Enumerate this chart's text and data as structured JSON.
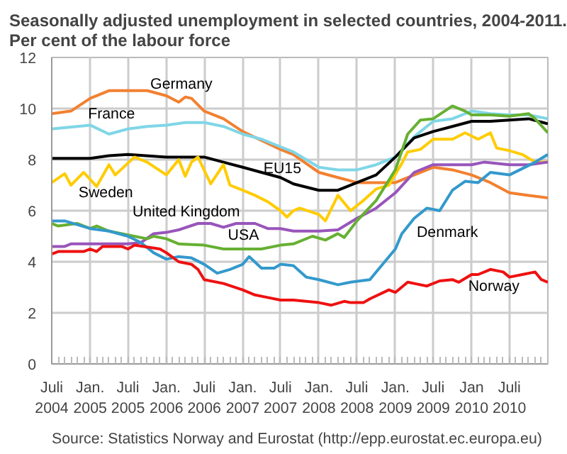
{
  "chart_data": {
    "type": "line",
    "title": "Seasonally adjusted unemployment in selected countries, 2004-2011.",
    "subtitle": "Per cent of the labour force",
    "annotations": [
      "Source: Statistics Norway and Eurostat (http://epp.eurostat.ec.europa.eu)"
    ],
    "xlim": [
      "2004-07",
      "2011-01"
    ],
    "ylim": [
      0,
      12
    ],
    "xticks": [
      {
        "value": "2004-07",
        "label": "Juli\n2004"
      },
      {
        "value": "2005-01",
        "label": "Jan.\n2005"
      },
      {
        "value": "2005-07",
        "label": "Juli\n2005"
      },
      {
        "value": "2006-01",
        "label": "Jan.\n2006"
      },
      {
        "value": "2006-07",
        "label": "Juli\n2006"
      },
      {
        "value": "2007-01",
        "label": "Jan.\n2007"
      },
      {
        "value": "2007-07",
        "label": "Juli\n2007"
      },
      {
        "value": "2008-01",
        "label": "Jan.\n2008"
      },
      {
        "value": "2008-07",
        "label": "Juli\n2008"
      },
      {
        "value": "2009-01",
        "label": "Jan.\n2009"
      },
      {
        "value": "2009-07",
        "label": "Juli\n2009"
      },
      {
        "value": "2010-01",
        "label": "Jan\n2010"
      },
      {
        "value": "2010-07",
        "label": "Juli\n2010"
      }
    ],
    "yticks": [
      0,
      2,
      4,
      6,
      8,
      10,
      12
    ],
    "grid": true,
    "legend": false,
    "marker": "none",
    "line_style": "solid",
    "series": [
      {
        "name": "Germany",
        "color": "#f28030",
        "x": [
          "2004-07",
          "2004-10",
          "2005-01",
          "2005-04",
          "2005-07",
          "2005-10",
          "2006-01",
          "2006-03",
          "2006-04",
          "2006-05",
          "2006-07",
          "2006-10",
          "2007-01",
          "2007-04",
          "2007-07",
          "2007-09",
          "2008-01",
          "2008-04",
          "2008-07",
          "2008-10",
          "2009-01",
          "2009-04",
          "2009-07",
          "2009-10",
          "2010-01",
          "2010-04",
          "2010-07",
          "2010-10",
          "2011-01"
        ],
        "values": [
          9.8,
          9.9,
          10.4,
          10.7,
          10.7,
          10.7,
          10.5,
          10.25,
          10.45,
          10.4,
          9.9,
          9.6,
          9.1,
          8.75,
          8.4,
          8.2,
          7.5,
          7.3,
          7.1,
          7.1,
          7.1,
          7.4,
          7.7,
          7.6,
          7.4,
          7.1,
          6.7,
          6.6,
          6.5
        ]
      },
      {
        "name": "France",
        "color": "#7fd6e6",
        "x": [
          "2004-07",
          "2005-01",
          "2005-04",
          "2005-07",
          "2005-10",
          "2006-01",
          "2006-04",
          "2006-07",
          "2006-10",
          "2007-01",
          "2007-04",
          "2007-07",
          "2007-09",
          "2008-01",
          "2008-04",
          "2008-07",
          "2008-10",
          "2009-01",
          "2009-04",
          "2009-07",
          "2009-10",
          "2010-01",
          "2010-04",
          "2010-07",
          "2010-10",
          "2011-01"
        ],
        "values": [
          9.2,
          9.35,
          9.0,
          9.2,
          9.3,
          9.35,
          9.45,
          9.45,
          9.3,
          9.0,
          8.8,
          8.5,
          8.3,
          7.7,
          7.6,
          7.6,
          7.8,
          8.1,
          8.9,
          9.5,
          9.6,
          9.9,
          9.8,
          9.75,
          9.75,
          9.6
        ]
      },
      {
        "name": "EU15",
        "color": "#000000",
        "x": [
          "2004-07",
          "2005-01",
          "2005-04",
          "2005-07",
          "2006-01",
          "2006-07",
          "2006-10",
          "2007-01",
          "2007-04",
          "2007-07",
          "2007-09",
          "2008-01",
          "2008-04",
          "2008-07",
          "2008-10",
          "2009-01",
          "2009-04",
          "2009-07",
          "2009-10",
          "2010-01",
          "2010-04",
          "2010-07",
          "2010-10",
          "2011-01"
        ],
        "values": [
          8.05,
          8.05,
          8.15,
          8.2,
          8.1,
          8.1,
          7.9,
          7.7,
          7.5,
          7.3,
          7.05,
          6.8,
          6.8,
          7.1,
          7.4,
          8.1,
          8.85,
          9.1,
          9.3,
          9.5,
          9.5,
          9.55,
          9.6,
          9.4
        ]
      },
      {
        "name": "Sweden",
        "color": "#ffcc00",
        "x": [
          "2004-07",
          "2004-09",
          "2004-10",
          "2004-12",
          "2005-02",
          "2005-04",
          "2005-05",
          "2005-08",
          "2005-10",
          "2006-01",
          "2006-03",
          "2006-04",
          "2006-05",
          "2006-06",
          "2006-08",
          "2006-10",
          "2006-11",
          "2007-01",
          "2007-03",
          "2007-05",
          "2007-07",
          "2007-08",
          "2007-09",
          "2007-10",
          "2008-01",
          "2008-02",
          "2008-04",
          "2008-06",
          "2008-08",
          "2008-10",
          "2008-12",
          "2009-02",
          "2009-03",
          "2009-05",
          "2009-07",
          "2009-10",
          "2009-12",
          "2010-02",
          "2010-04",
          "2010-05",
          "2010-07",
          "2010-09",
          "2010-11",
          "2011-01"
        ],
        "values": [
          7.1,
          7.45,
          7.0,
          7.5,
          6.95,
          7.8,
          7.4,
          8.1,
          7.9,
          7.4,
          8.0,
          7.35,
          7.9,
          8.1,
          7.05,
          7.8,
          7.0,
          6.8,
          6.6,
          6.35,
          6.0,
          5.75,
          6.0,
          6.1,
          5.85,
          5.6,
          6.6,
          6.0,
          6.4,
          6.85,
          7.0,
          7.85,
          8.3,
          8.4,
          8.8,
          8.8,
          9.05,
          8.8,
          9.05,
          8.45,
          8.35,
          8.2,
          7.9,
          7.9
        ]
      },
      {
        "name": "United Kingdom",
        "color": "#9955bb",
        "x": [
          "2004-07",
          "2004-09",
          "2004-10",
          "2005-07",
          "2005-09",
          "2005-11",
          "2006-01",
          "2006-03",
          "2006-06",
          "2006-08",
          "2006-10",
          "2006-12",
          "2007-03",
          "2007-05",
          "2007-07",
          "2007-09",
          "2008-01",
          "2008-04",
          "2008-07",
          "2008-10",
          "2009-01",
          "2009-04",
          "2009-07",
          "2009-10",
          "2010-01",
          "2010-03",
          "2010-07",
          "2010-10",
          "2011-01"
        ],
        "values": [
          4.6,
          4.6,
          4.7,
          4.7,
          4.75,
          5.1,
          5.15,
          5.25,
          5.5,
          5.5,
          5.35,
          5.5,
          5.5,
          5.3,
          5.3,
          5.2,
          5.2,
          5.25,
          5.7,
          6.1,
          6.7,
          7.5,
          7.8,
          7.8,
          7.8,
          7.9,
          7.8,
          7.8,
          7.9
        ]
      },
      {
        "name": "USA",
        "color": "#66b032",
        "x": [
          "2004-07",
          "2004-08",
          "2004-11",
          "2005-01",
          "2005-02",
          "2005-04",
          "2005-07",
          "2005-10",
          "2005-11",
          "2006-01",
          "2006-03",
          "2006-07",
          "2006-10",
          "2007-01",
          "2007-04",
          "2007-07",
          "2007-09",
          "2007-12",
          "2008-02",
          "2008-04",
          "2008-05",
          "2008-07",
          "2008-10",
          "2009-01",
          "2009-03",
          "2009-05",
          "2009-07",
          "2009-10",
          "2009-12",
          "2010-01",
          "2010-04",
          "2010-07",
          "2010-10",
          "2010-11",
          "2011-01"
        ],
        "values": [
          5.5,
          5.4,
          5.5,
          5.3,
          5.4,
          5.2,
          5.05,
          4.9,
          5.0,
          4.9,
          4.7,
          4.65,
          4.5,
          4.5,
          4.5,
          4.65,
          4.7,
          5.0,
          4.85,
          5.1,
          4.95,
          5.6,
          6.4,
          7.6,
          9.0,
          9.55,
          9.6,
          10.1,
          9.9,
          9.75,
          9.75,
          9.7,
          9.8,
          9.6,
          9.05
        ]
      },
      {
        "name": "Denmark",
        "color": "#3399cc",
        "x": [
          "2004-07",
          "2004-09",
          "2005-01",
          "2005-04",
          "2005-07",
          "2005-09",
          "2005-11",
          "2006-01",
          "2006-03",
          "2006-05",
          "2006-07",
          "2006-09",
          "2006-11",
          "2007-01",
          "2007-02",
          "2007-04",
          "2007-06",
          "2007-07",
          "2007-09",
          "2007-11",
          "2008-01",
          "2008-04",
          "2008-06",
          "2008-09",
          "2008-10",
          "2009-01",
          "2009-02",
          "2009-04",
          "2009-06",
          "2009-08",
          "2009-10",
          "2009-12",
          "2010-02",
          "2010-04",
          "2010-07",
          "2010-09",
          "2010-11",
          "2011-01"
        ],
        "values": [
          5.6,
          5.6,
          5.3,
          5.2,
          5.0,
          4.75,
          4.35,
          4.1,
          4.2,
          4.15,
          3.9,
          3.55,
          3.7,
          3.9,
          4.2,
          3.75,
          3.75,
          3.9,
          3.85,
          3.4,
          3.3,
          3.1,
          3.2,
          3.3,
          3.6,
          4.5,
          5.1,
          5.7,
          6.1,
          6.0,
          6.8,
          7.15,
          7.1,
          7.5,
          7.4,
          7.65,
          7.9,
          8.2
        ]
      },
      {
        "name": "Norway",
        "color": "#ee1111",
        "x": [
          "2004-07",
          "2004-08",
          "2004-12",
          "2005-01",
          "2005-02",
          "2005-03",
          "2005-06",
          "2005-07",
          "2005-08",
          "2005-12",
          "2006-01",
          "2006-03",
          "2006-05",
          "2006-06",
          "2006-07",
          "2006-10",
          "2007-01",
          "2007-03",
          "2007-05",
          "2007-07",
          "2007-09",
          "2008-01",
          "2008-03",
          "2008-05",
          "2008-06",
          "2008-08",
          "2008-09",
          "2008-12",
          "2009-01",
          "2009-03",
          "2009-04",
          "2009-06",
          "2009-08",
          "2009-10",
          "2009-11",
          "2010-01",
          "2010-02",
          "2010-04",
          "2010-06",
          "2010-07",
          "2010-09",
          "2010-11",
          "2010-12",
          "2011-01"
        ],
        "values": [
          4.3,
          4.4,
          4.4,
          4.5,
          4.4,
          4.6,
          4.6,
          4.5,
          4.65,
          4.5,
          4.35,
          4.0,
          3.9,
          3.7,
          3.3,
          3.15,
          2.9,
          2.7,
          2.6,
          2.5,
          2.5,
          2.4,
          2.3,
          2.45,
          2.4,
          2.4,
          2.55,
          2.9,
          2.8,
          3.2,
          3.15,
          3.05,
          3.25,
          3.3,
          3.2,
          3.5,
          3.5,
          3.7,
          3.6,
          3.4,
          3.5,
          3.6,
          3.3,
          3.2
        ]
      }
    ]
  }
}
